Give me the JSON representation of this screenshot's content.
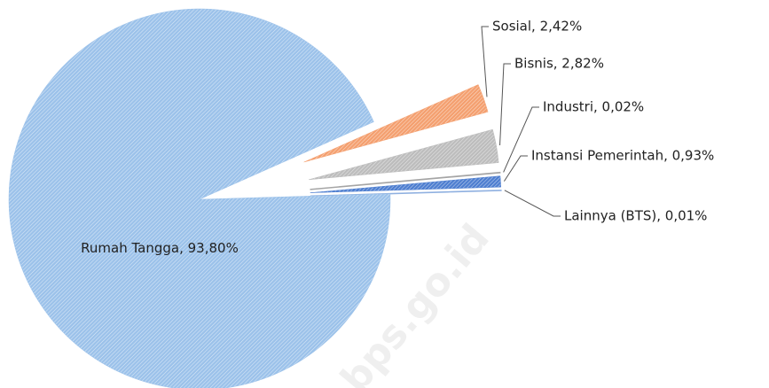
{
  "chart_data": {
    "type": "pie",
    "categories": [
      "Sosial",
      "Bisnis",
      "Industri",
      "Instansi Pemerintah",
      "Lainnya (BTS)",
      "Rumah Tangga"
    ],
    "values": [
      2.42,
      2.82,
      0.02,
      0.93,
      0.01,
      93.8
    ],
    "value_labels": [
      "Sosial, 2,42%",
      "Bisnis, 2,82%",
      "Industri, 0,02%",
      "Instansi Pemerintah, 0,93%",
      "Lainnya (BTS), 0,01%",
      "Rumah Tangga, 93,80%"
    ],
    "colors": [
      "#f4a070",
      "#bdbdbd",
      "#a5a5a5",
      "#4f7fd0",
      "#8fb0e0",
      "#9cc2ea"
    ],
    "watermark": "bps.go.id"
  }
}
